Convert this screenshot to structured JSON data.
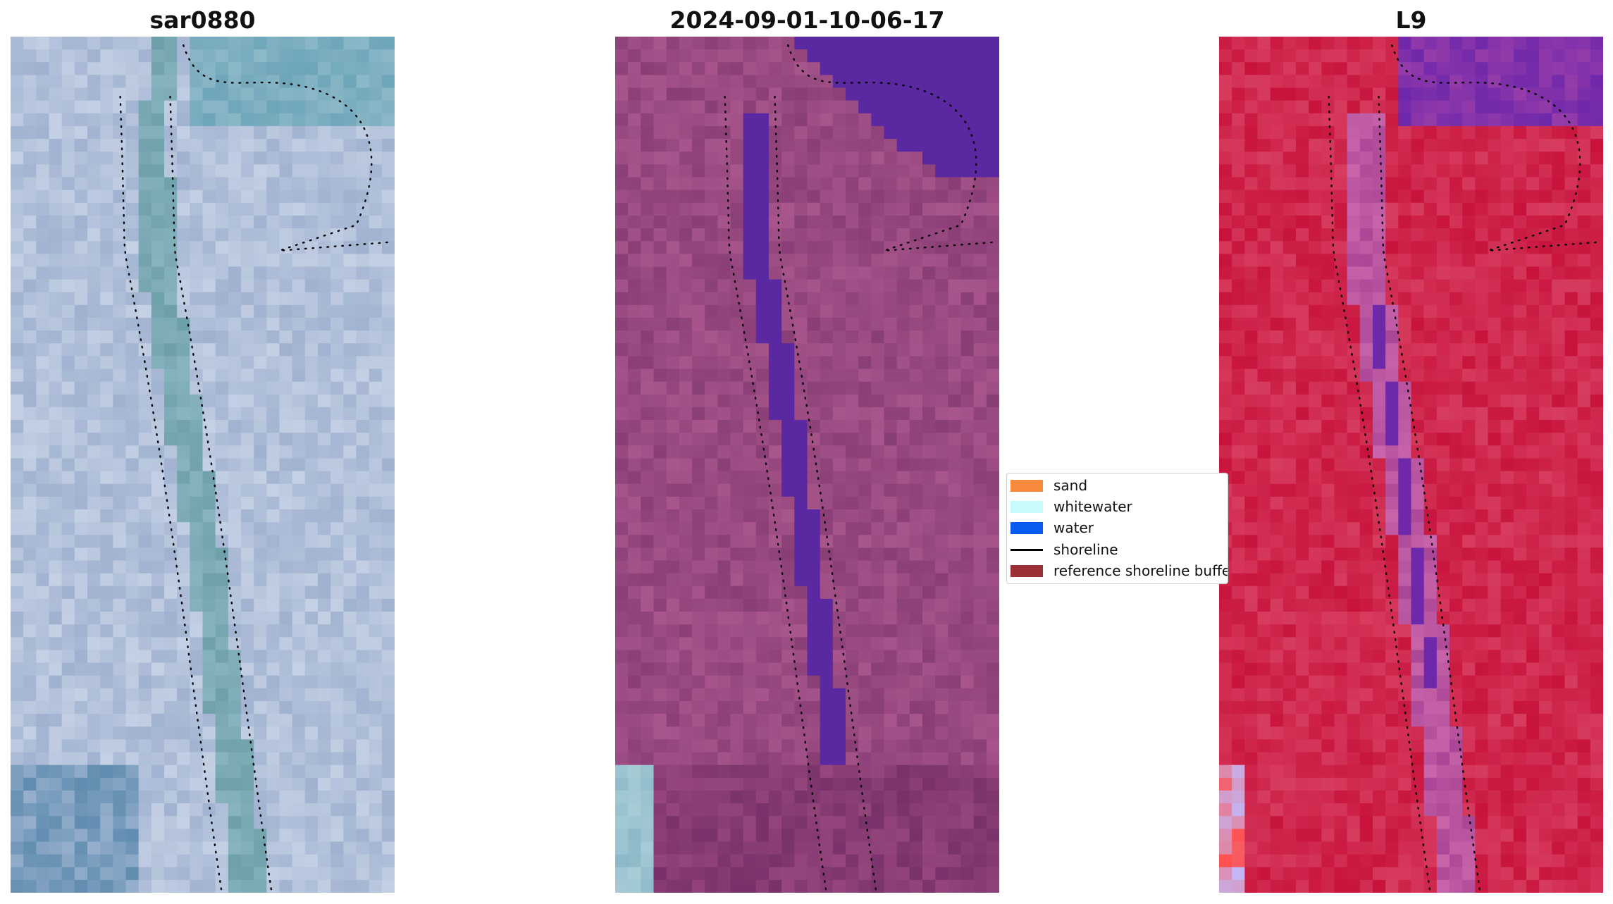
{
  "panels": [
    {
      "title": "sar0880",
      "palette": "rgb"
    },
    {
      "title": "2024-09-01-10-06-17",
      "palette": "classified"
    },
    {
      "title": "L9",
      "palette": "index"
    }
  ],
  "legend": {
    "items": [
      {
        "label": "sand",
        "kind": "patch",
        "color": "#f78a3b"
      },
      {
        "label": "whitewater",
        "kind": "patch",
        "color": "#c8fbfb"
      },
      {
        "label": "water",
        "kind": "patch",
        "color": "#0a5cf0"
      },
      {
        "label": "shoreline",
        "kind": "line",
        "color": "#000000"
      },
      {
        "label": "reference shoreline buffer",
        "kind": "patch",
        "color": "#9b3136"
      }
    ]
  },
  "colors": {
    "sar_base": "#a9b9d3",
    "sar_channel": "#7ea9b5",
    "classified_base": "#94487d",
    "classified_water": "#5b2aa0",
    "index_base": "#c81a48",
    "index_channel": "#6a2aa8"
  }
}
